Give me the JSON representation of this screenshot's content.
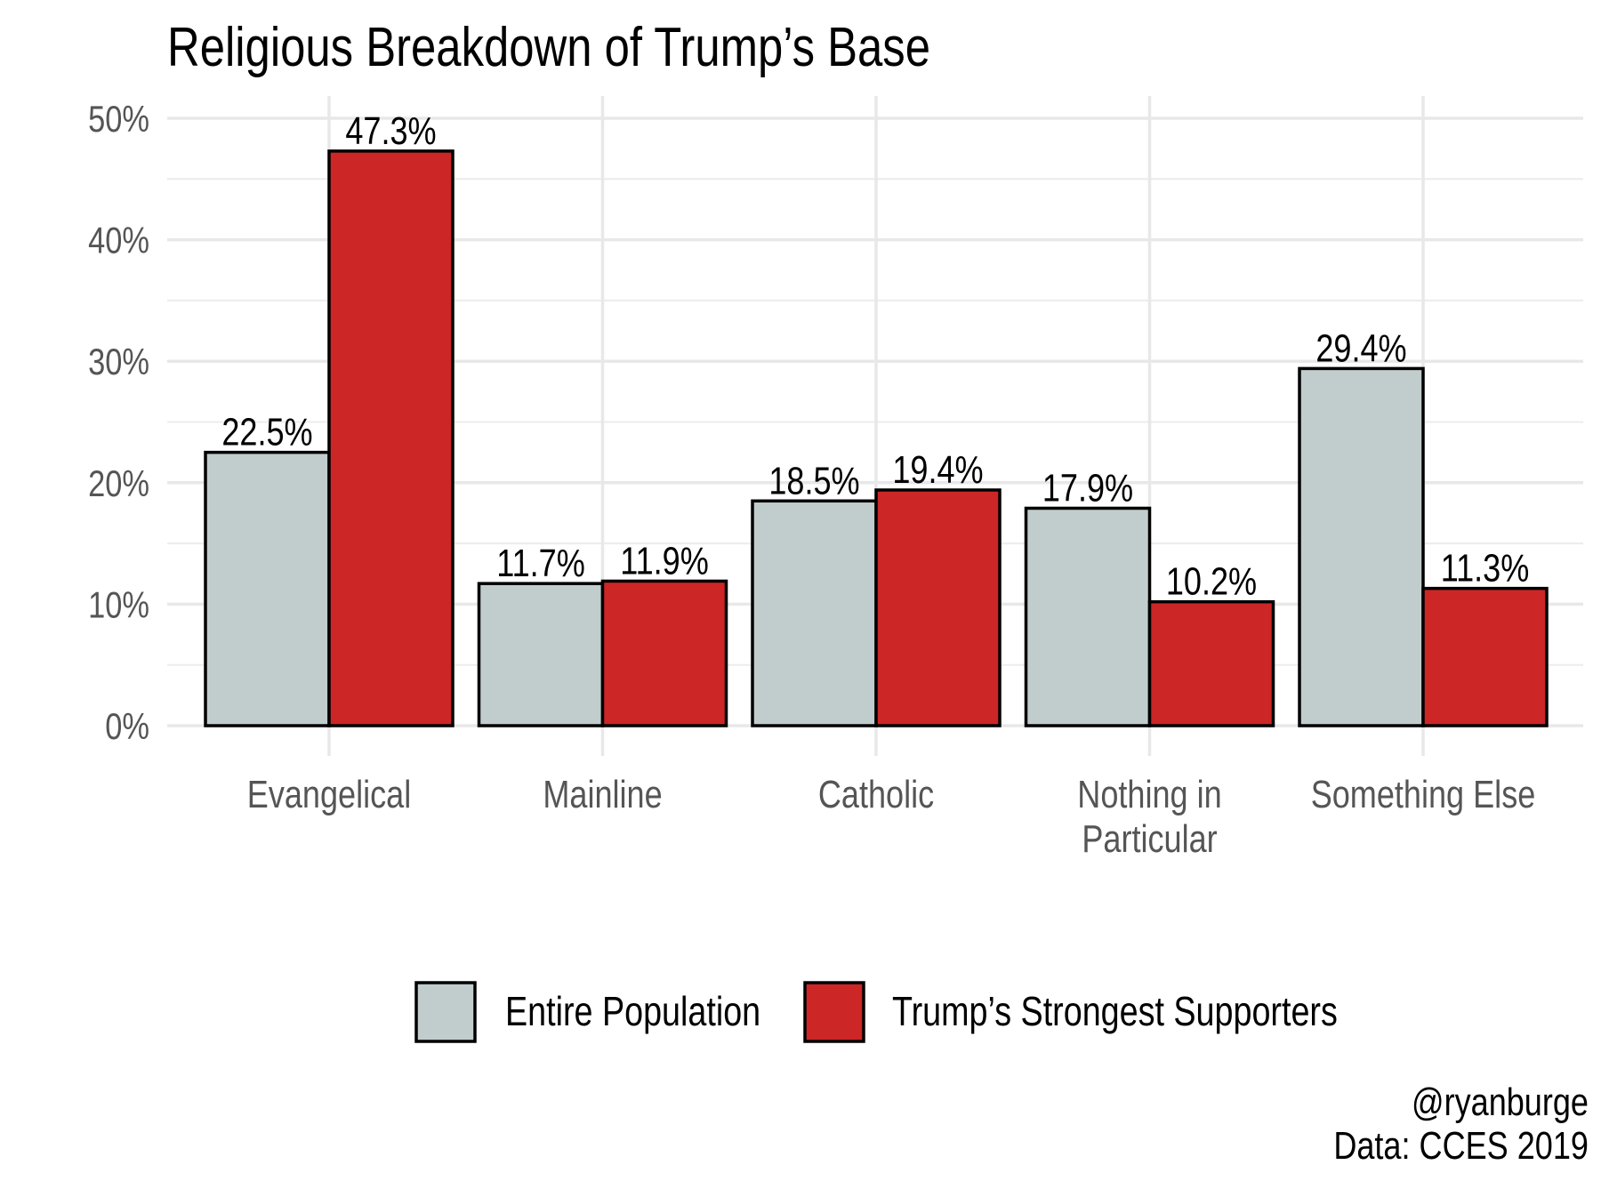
{
  "chart_data": {
    "type": "bar",
    "title": "Religious Breakdown of Trump’s Base",
    "xlabel": "",
    "ylabel": "",
    "ylim": [
      0,
      50
    ],
    "y_ticks": [
      "0%",
      "10%",
      "20%",
      "30%",
      "40%",
      "50%"
    ],
    "y_tick_values": [
      0,
      10,
      20,
      30,
      40,
      50
    ],
    "grid": true,
    "categories": [
      [
        "Evangelical"
      ],
      [
        "Mainline"
      ],
      [
        "Catholic"
      ],
      [
        "Nothing in",
        "Particular"
      ],
      [
        "Something Else"
      ]
    ],
    "series": [
      {
        "name": "Entire Population",
        "color": "#c1cdcc",
        "values": [
          22.5,
          11.7,
          18.5,
          17.9,
          29.4
        ],
        "labels": [
          "22.5%",
          "11.7%",
          "18.5%",
          "17.9%",
          "29.4%"
        ]
      },
      {
        "name": "Trump’s Strongest Supporters",
        "color": "#cc2627",
        "values": [
          47.3,
          11.9,
          19.4,
          10.2,
          11.3
        ],
        "labels": [
          "47.3%",
          "11.9%",
          "19.4%",
          "10.2%",
          "11.3%"
        ]
      }
    ],
    "legend_position": "bottom",
    "caption": [
      "@ryanburge",
      "Data: CCES 2019"
    ]
  }
}
